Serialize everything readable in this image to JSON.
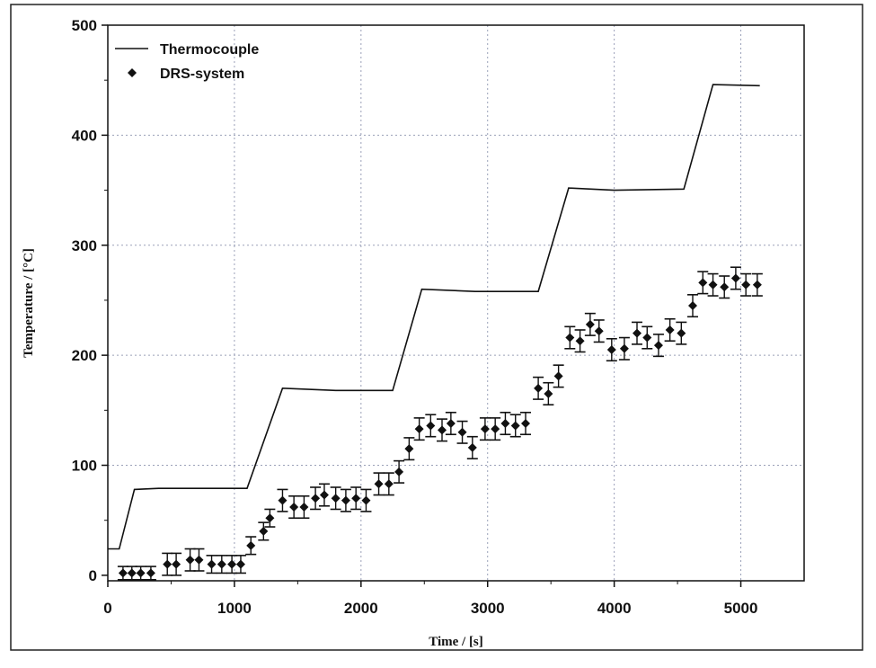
{
  "chart_data": {
    "type": "line",
    "xlabel": "Time / [s]",
    "ylabel": "Temperature / [°C]",
    "xlim": [
      0,
      5500
    ],
    "ylim": [
      -5,
      500
    ],
    "xticks": [
      0,
      1000,
      2000,
      3000,
      4000,
      5000
    ],
    "yticks": [
      0,
      100,
      200,
      300,
      400,
      500
    ],
    "grid": true,
    "legend_position": "top-left",
    "series": [
      {
        "name": "Thermocouple",
        "style": "line",
        "x": [
          0,
          90,
          210,
          400,
          800,
          1100,
          1380,
          1800,
          2250,
          2480,
          2900,
          3400,
          3640,
          4000,
          4550,
          4780,
          5150
        ],
        "y": [
          24,
          24,
          78,
          79,
          79,
          79,
          170,
          168,
          168,
          260,
          258,
          258,
          352,
          350,
          351,
          446,
          445
        ]
      },
      {
        "name": "DRS-system",
        "style": "marker-errorbar",
        "x": [
          120,
          190,
          260,
          340,
          470,
          540,
          650,
          720,
          820,
          900,
          980,
          1050,
          1130,
          1230,
          1280,
          1380,
          1470,
          1550,
          1640,
          1710,
          1800,
          1880,
          1960,
          2040,
          2140,
          2220,
          2300,
          2380,
          2460,
          2550,
          2640,
          2710,
          2800,
          2880,
          2980,
          3060,
          3140,
          3220,
          3300,
          3400,
          3480,
          3560,
          3650,
          3730,
          3810,
          3880,
          3980,
          4080,
          4180,
          4260,
          4350,
          4440,
          4530,
          4620,
          4700,
          4780,
          4870,
          4960,
          5040,
          5130
        ],
        "y": [
          2,
          2,
          2,
          2,
          10,
          10,
          14,
          14,
          10,
          10,
          10,
          10,
          27,
          40,
          52,
          68,
          62,
          62,
          70,
          73,
          70,
          68,
          70,
          68,
          83,
          83,
          94,
          115,
          133,
          136,
          132,
          138,
          130,
          116,
          133,
          133,
          138,
          136,
          138,
          170,
          165,
          181,
          216,
          213,
          228,
          222,
          205,
          206,
          220,
          216,
          209,
          223,
          220,
          245,
          266,
          264,
          262,
          270,
          264,
          264
        ],
        "err": [
          6,
          6,
          6,
          6,
          10,
          10,
          10,
          10,
          8,
          8,
          8,
          8,
          8,
          8,
          8,
          10,
          10,
          10,
          10,
          10,
          10,
          10,
          10,
          10,
          10,
          10,
          10,
          10,
          10,
          10,
          10,
          10,
          10,
          10,
          10,
          10,
          10,
          10,
          10,
          10,
          10,
          10,
          10,
          10,
          10,
          10,
          10,
          10,
          10,
          10,
          10,
          10,
          10,
          10,
          10,
          10,
          10,
          10,
          10,
          10
        ]
      }
    ]
  }
}
